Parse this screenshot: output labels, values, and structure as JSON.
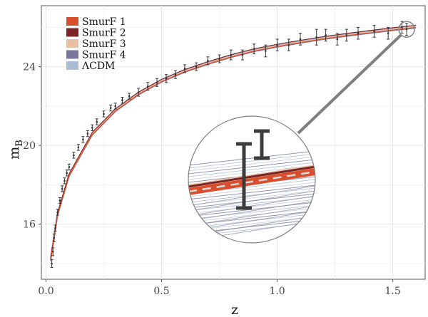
{
  "chart_data": {
    "type": "scatter",
    "title": "",
    "xlabel": "z",
    "ylabel_main": "m",
    "ylabel_sub": "B",
    "xlim": [
      -0.02,
      1.64
    ],
    "ylim": [
      13.2,
      27.1
    ],
    "x_ticks": [
      0.0,
      0.5,
      1.0,
      1.5
    ],
    "x_tick_labels": [
      "0.0",
      "0.5",
      "1.0",
      "1.5"
    ],
    "y_ticks": [
      16,
      20,
      24
    ],
    "y_tick_labels": [
      "16",
      "20",
      "24"
    ],
    "grid": true,
    "legend_position": "top-left",
    "series": [
      {
        "name": "SmurF 1",
        "color": "#d94f2e"
      },
      {
        "name": "SmurF 2",
        "color": "#7b2424"
      },
      {
        "name": "SmurF 3",
        "color": "#e8bfa0"
      },
      {
        "name": "SmurF 4",
        "color": "#77789a"
      },
      {
        "name": "ΛCDM",
        "color": "#a9bdd6"
      }
    ],
    "model_curve": {
      "x": [
        0.02,
        0.05,
        0.1,
        0.2,
        0.3,
        0.4,
        0.5,
        0.6,
        0.7,
        0.8,
        0.9,
        1.0,
        1.1,
        1.2,
        1.3,
        1.4,
        1.5,
        1.6
      ],
      "y": [
        14.2,
        16.5,
        18.5,
        20.6,
        21.8,
        22.65,
        23.3,
        23.8,
        24.2,
        24.55,
        24.85,
        25.08,
        25.28,
        25.47,
        25.63,
        25.78,
        25.92,
        26.05
      ]
    },
    "observations": {
      "x": [
        0.025,
        0.03,
        0.035,
        0.04,
        0.05,
        0.06,
        0.07,
        0.08,
        0.09,
        0.1,
        0.12,
        0.14,
        0.16,
        0.18,
        0.2,
        0.22,
        0.25,
        0.28,
        0.3,
        0.33,
        0.36,
        0.4,
        0.44,
        0.48,
        0.52,
        0.56,
        0.6,
        0.65,
        0.7,
        0.75,
        0.8,
        0.85,
        0.9,
        0.95,
        1.0,
        1.05,
        1.1,
        1.17,
        1.21,
        1.26,
        1.3,
        1.35,
        1.42,
        1.48,
        1.54,
        1.56
      ],
      "y": [
        14.0,
        14.6,
        15.3,
        15.8,
        16.6,
        17.2,
        17.8,
        18.2,
        18.6,
        18.9,
        19.5,
        19.9,
        20.3,
        20.6,
        20.9,
        21.2,
        21.6,
        21.9,
        22.0,
        22.3,
        22.5,
        22.7,
        23.0,
        23.2,
        23.4,
        23.6,
        23.9,
        24.0,
        24.3,
        24.4,
        24.6,
        24.6,
        24.9,
        24.8,
        25.1,
        25.1,
        25.4,
        25.5,
        25.6,
        25.4,
        25.6,
        25.7,
        25.8,
        25.7,
        26.0,
        25.9
      ],
      "err": [
        0.2,
        0.2,
        0.2,
        0.15,
        0.15,
        0.15,
        0.15,
        0.15,
        0.15,
        0.15,
        0.15,
        0.15,
        0.15,
        0.15,
        0.15,
        0.15,
        0.15,
        0.15,
        0.15,
        0.15,
        0.15,
        0.2,
        0.2,
        0.2,
        0.2,
        0.2,
        0.2,
        0.2,
        0.2,
        0.2,
        0.25,
        0.25,
        0.25,
        0.3,
        0.3,
        0.3,
        0.3,
        0.4,
        0.3,
        0.3,
        0.3,
        0.3,
        0.3,
        0.3,
        0.3,
        0.3
      ]
    },
    "zoom_inset": {
      "center_x": 1.56,
      "center_y": 25.9
    }
  }
}
